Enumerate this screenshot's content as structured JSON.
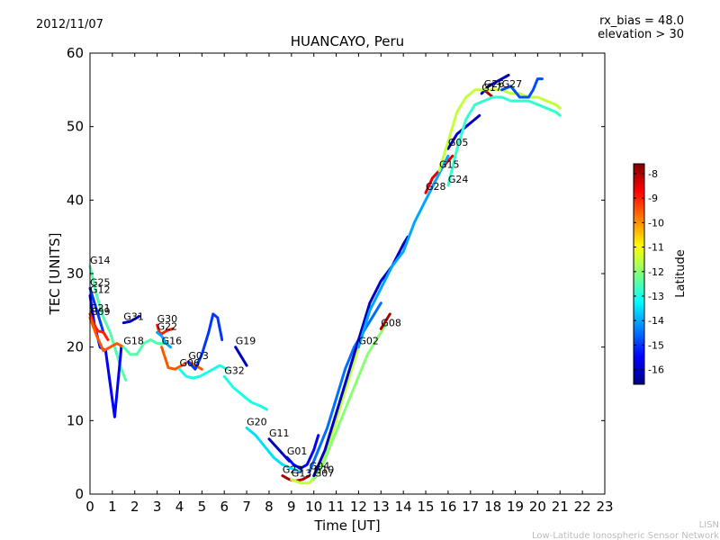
{
  "chart_data": {
    "type": "line",
    "title": "HUANCAYO, Peru",
    "date": "2012/11/07",
    "info_lines": [
      "rx_bias = 48.0",
      "elevation > 30"
    ],
    "xlabel": "Time [UT]",
    "ylabel": "TEC [UNITS]",
    "xlim": [
      0,
      23
    ],
    "ylim": [
      0,
      60
    ],
    "xticks": [
      0,
      1,
      2,
      3,
      4,
      5,
      6,
      7,
      8,
      9,
      10,
      11,
      12,
      13,
      14,
      15,
      16,
      17,
      18,
      19,
      20,
      21,
      22,
      23
    ],
    "yticks": [
      0,
      10,
      20,
      30,
      40,
      50,
      60
    ],
    "colorbar": {
      "label": "Latitude",
      "range": [
        -16.6,
        -7.6
      ],
      "ticks": [
        -8,
        -9,
        -10,
        -11,
        -12,
        -13,
        -14,
        -15,
        -16
      ],
      "colors": [
        "#00007f",
        "#0000ff",
        "#007fff",
        "#00ffff",
        "#7fff7f",
        "#ffff00",
        "#ff7f00",
        "#ff0000",
        "#7f0000"
      ]
    },
    "footer": [
      "LISN",
      "Low-Latitude Ionospheric Sensor Network"
    ],
    "series": [
      {
        "name": "G14",
        "lat": -12.5,
        "x": [
          0,
          0.3,
          0.6,
          0.9,
          1.1,
          1.4,
          1.6
        ],
        "y": [
          31,
          27,
          24,
          22,
          20,
          17,
          15.5
        ]
      },
      {
        "name": "G25",
        "lat": -15,
        "x": [
          0,
          0.3,
          0.6
        ],
        "y": [
          28,
          25,
          22
        ]
      },
      {
        "name": "G12",
        "lat": -15.5,
        "x": [
          0,
          0.2,
          0.45,
          0.7,
          0.9,
          1.1,
          1.4
        ],
        "y": [
          27,
          23,
          20,
          19.5,
          15,
          10.5,
          20
        ]
      },
      {
        "name": "G21",
        "lat": -9,
        "x": [
          0,
          0.2,
          0.35,
          0.6,
          0.8
        ],
        "y": [
          24.5,
          23,
          22.2,
          22,
          21
        ]
      },
      {
        "name": "G09",
        "lat": -9.5,
        "x": [
          0,
          0.3,
          0.6,
          0.9,
          1.2,
          1.5
        ],
        "y": [
          24,
          21.5,
          19.5,
          20,
          20.5,
          20
        ]
      },
      {
        "name": "G31",
        "lat": -16,
        "x": [
          1.5,
          1.8,
          2.1,
          2.2
        ],
        "y": [
          23.3,
          23.5,
          24,
          24.2
        ]
      },
      {
        "name": "G18",
        "lat": -12.5,
        "x": [
          1.5,
          1.8,
          2.1,
          2.4,
          2.7,
          3.0,
          3.3
        ],
        "y": [
          20,
          19,
          19,
          20.5,
          21,
          20.5,
          20.5
        ]
      },
      {
        "name": "G30",
        "lat": -9,
        "x": [
          3.0,
          3.1,
          3.2,
          3.4,
          3.7
        ],
        "y": [
          23,
          22,
          21.8,
          22.2,
          22.5
        ]
      },
      {
        "name": "G22",
        "lat": -14,
        "x": [
          3.0,
          3.2,
          3.4,
          3.6
        ],
        "y": [
          22,
          21.5,
          20.5,
          20
        ]
      },
      {
        "name": "G16",
        "lat": -9.5,
        "x": [
          3.2,
          3.5,
          3.8,
          4.1,
          4.4,
          4.7,
          5.0
        ],
        "y": [
          20,
          17.2,
          17,
          17.5,
          18,
          17.5,
          17
        ]
      },
      {
        "name": "G06",
        "lat": -13,
        "x": [
          4.0,
          4.3,
          4.6,
          4.9,
          5.2,
          5.5,
          5.8,
          6.1
        ],
        "y": [
          17,
          16,
          15.8,
          16,
          16.5,
          17,
          17.5,
          17
        ]
      },
      {
        "name": "G03",
        "lat": -15,
        "x": [
          4.4,
          4.7,
          5.0,
          5.3,
          5.5,
          5.7,
          5.9
        ],
        "y": [
          18,
          17,
          19,
          22,
          24.5,
          24,
          21
        ]
      },
      {
        "name": "G19",
        "lat": -16,
        "x": [
          6.5,
          6.7,
          6.9,
          7.0
        ],
        "y": [
          20,
          19,
          18,
          17.5
        ]
      },
      {
        "name": "G32",
        "lat": -13,
        "x": [
          6.0,
          6.4,
          6.8,
          7.2,
          7.6,
          7.9
        ],
        "y": [
          16,
          14.5,
          13.5,
          12.5,
          12,
          11.5
        ]
      },
      {
        "name": "G11",
        "lat": -16,
        "x": [
          8.0,
          8.3,
          8.6,
          8.9
        ],
        "y": [
          7.5,
          6.5,
          5.5,
          4.5
        ]
      },
      {
        "name": "G20",
        "lat": -13.5,
        "x": [
          7.0,
          7.4,
          7.8,
          8.2,
          8.6,
          9.0,
          9.4
        ],
        "y": [
          9,
          8,
          6.5,
          5,
          4,
          3.5,
          3
        ]
      },
      {
        "name": "G01",
        "lat": -15.5,
        "x": [
          8.8,
          9.1,
          9.4,
          9.7,
          10.0,
          10.2
        ],
        "y": [
          5,
          4,
          3.5,
          4,
          6,
          8
        ]
      },
      {
        "name": "G23",
        "lat": -8,
        "x": [
          8.6,
          8.9,
          9.2,
          9.5,
          9.8
        ],
        "y": [
          2.5,
          2,
          1.8,
          2,
          2.5
        ]
      },
      {
        "name": "G13",
        "lat": -11.5,
        "x": [
          9.0,
          9.4,
          9.8,
          10.2,
          10.6,
          11.0,
          11.4,
          11.8,
          12.2
        ],
        "y": [
          2,
          1.5,
          1.5,
          3,
          6,
          10,
          14,
          18,
          22
        ]
      },
      {
        "name": "G07",
        "lat": -12,
        "x": [
          10.0,
          10.4,
          10.8,
          11.2,
          11.6,
          12.0,
          12.4,
          12.8,
          13.2
        ],
        "y": [
          2,
          4,
          7,
          10,
          13,
          16,
          19,
          21,
          23
        ]
      },
      {
        "name": "G04",
        "lat": -14.5,
        "x": [
          9.8,
          10.2,
          10.6,
          11.0,
          11.4,
          11.8,
          12.2,
          12.6,
          13.0
        ],
        "y": [
          3,
          6,
          9,
          13,
          17,
          20,
          22,
          24,
          26
        ]
      },
      {
        "name": "G08",
        "lat": -8,
        "x": [
          13.0,
          13.2,
          13.4
        ],
        "y": [
          22.5,
          23.5,
          24.5
        ]
      },
      {
        "name": "G10",
        "lat": -16,
        "x": [
          10.0,
          10.5,
          11.0,
          11.5,
          12.0,
          12.5,
          13.0,
          13.5,
          14.0,
          14.2
        ],
        "y": [
          2.5,
          6,
          11,
          16,
          21,
          26,
          29,
          31,
          34,
          35
        ]
      },
      {
        "name": "G28",
        "lat": -8.5,
        "x": [
          15.0,
          15.3,
          15.6,
          15.9,
          16.2
        ],
        "y": [
          41,
          43,
          44,
          45,
          46
        ]
      },
      {
        "name": "G02",
        "lat": -14,
        "x": [
          12.0,
          12.5,
          13.0,
          13.5,
          14.0,
          14.5,
          15.0,
          15.5,
          16.0
        ],
        "y": [
          20,
          25,
          28,
          31,
          33,
          37,
          40,
          43,
          46
        ]
      },
      {
        "name": "G05",
        "lat": -16,
        "x": [
          16.0,
          16.4,
          16.8,
          17.2,
          17.4
        ],
        "y": [
          47,
          49,
          50,
          51,
          51.5
        ]
      },
      {
        "name": "G26",
        "lat": -8,
        "x": [
          17.6,
          17.8,
          18.0,
          18.2
        ],
        "y": [
          55,
          54.5,
          54,
          54
        ]
      },
      {
        "name": "G17",
        "lat": -16,
        "x": [
          17.5,
          17.8,
          18.1,
          18.4,
          18.7
        ],
        "y": [
          54.5,
          55.5,
          56,
          56.5,
          57
        ]
      },
      {
        "name": "G15",
        "lat": -11.5,
        "x": [
          15.6,
          16.0,
          16.4,
          16.8,
          17.2,
          17.6,
          18.0,
          18.4,
          18.8,
          19.2,
          19.6,
          20.0,
          20.4,
          20.8,
          21.0
        ],
        "y": [
          44,
          48,
          52,
          54,
          55,
          55,
          55,
          55,
          54.5,
          54.5,
          54,
          54,
          53.5,
          53,
          52.5
        ]
      },
      {
        "name": "G24",
        "lat": -12.8,
        "x": [
          16.0,
          16.4,
          16.8,
          17.2,
          17.6,
          18.0,
          18.4,
          18.8,
          19.2,
          19.6,
          20.0,
          20.4,
          20.8,
          21.0
        ],
        "y": [
          42,
          47,
          51,
          53,
          53.5,
          54,
          54,
          53.5,
          53.5,
          53.5,
          53,
          52.5,
          52,
          51.5
        ]
      },
      {
        "name": "G27",
        "lat": -14.8,
        "x": [
          18.4,
          18.8,
          19.2,
          19.6,
          19.8,
          20.0,
          20.2
        ],
        "y": [
          55,
          55.5,
          54,
          54,
          55,
          56.5,
          56.5
        ]
      }
    ]
  }
}
